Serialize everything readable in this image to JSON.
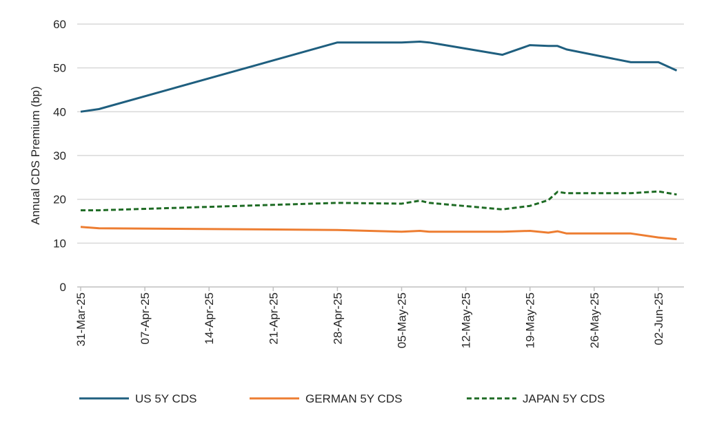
{
  "chart_data": {
    "type": "line",
    "title": "",
    "xlabel": "",
    "ylabel": "Annual CDS Premium (bp)",
    "ylim": [
      0,
      60
    ],
    "yticks": [
      0,
      10,
      20,
      30,
      40,
      50,
      60
    ],
    "grid": true,
    "legend_position": "bottom",
    "x_start": "2025-03-31",
    "xticks": [
      "31-Mar-25",
      "07-Apr-25",
      "14-Apr-25",
      "21-Apr-25",
      "28-Apr-25",
      "05-May-25",
      "12-May-25",
      "19-May-25",
      "26-May-25",
      "02-Jun-25"
    ],
    "x": [
      "2025-03-31",
      "2025-04-02",
      "2025-04-28",
      "2025-05-05",
      "2025-05-07",
      "2025-05-08",
      "2025-05-16",
      "2025-05-19",
      "2025-05-21",
      "2025-05-22",
      "2025-05-23",
      "2025-05-30",
      "2025-06-02",
      "2025-06-04"
    ],
    "series": [
      {
        "name": "US 5Y CDS",
        "color": "#1f5f7f",
        "dash": "solid",
        "values": [
          40.0,
          40.6,
          55.8,
          55.8,
          56.0,
          55.8,
          53.0,
          55.2,
          55.0,
          55.0,
          54.2,
          51.3,
          51.3,
          49.4
        ]
      },
      {
        "name": "GERMAN 5Y CDS",
        "color": "#ed7d31",
        "dash": "solid",
        "values": [
          13.7,
          13.4,
          13.0,
          12.6,
          12.8,
          12.6,
          12.6,
          12.8,
          12.4,
          12.7,
          12.2,
          12.2,
          11.3,
          10.9
        ]
      },
      {
        "name": "JAPAN 5Y CDS",
        "color": "#1e6b24",
        "dash": "dashed",
        "values": [
          17.5,
          17.5,
          19.2,
          19.0,
          19.7,
          19.2,
          17.7,
          18.5,
          19.8,
          21.7,
          21.4,
          21.4,
          21.8,
          21.1
        ]
      }
    ]
  }
}
